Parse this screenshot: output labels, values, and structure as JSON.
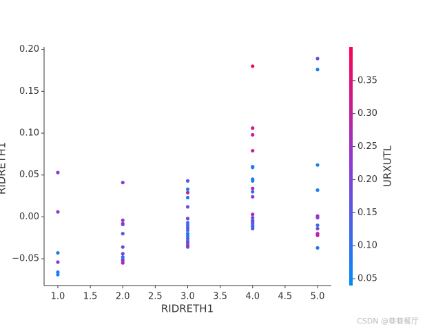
{
  "chart_data": {
    "type": "scatter",
    "xlabel": "RIDRETH1",
    "ylabel": "RIDRETH1",
    "colorbar_label": "URXUTL",
    "x": [
      1,
      1,
      1,
      1,
      1,
      1,
      2,
      2,
      2,
      2,
      2,
      2,
      2,
      2,
      2,
      2,
      2,
      3,
      3,
      3,
      3,
      3,
      3,
      3,
      3,
      3,
      3,
      3,
      3,
      3,
      3,
      3,
      3,
      3,
      4,
      4,
      4,
      4,
      4,
      4,
      4,
      4,
      4,
      4,
      4,
      4,
      4,
      4,
      4,
      4,
      4,
      4,
      4,
      5,
      5,
      5,
      5,
      5,
      5,
      5,
      5,
      5,
      5,
      5
    ],
    "y": [
      0.053,
      0.006,
      -0.043,
      -0.054,
      -0.066,
      -0.069,
      0.041,
      -0.004,
      -0.008,
      -0.009,
      -0.02,
      -0.036,
      -0.044,
      -0.048,
      -0.051,
      -0.052,
      -0.055,
      0.043,
      0.033,
      0.029,
      0.023,
      0.012,
      -0.002,
      -0.007,
      -0.01,
      -0.013,
      -0.016,
      -0.02,
      -0.023,
      -0.026,
      -0.029,
      -0.031,
      -0.034,
      -0.036,
      0.18,
      0.106,
      0.098,
      0.079,
      0.06,
      0.059,
      0.045,
      0.043,
      0.034,
      0.03,
      0.024,
      0.003,
      -0.001,
      -0.004,
      -0.006,
      -0.008,
      -0.01,
      -0.012,
      -0.014,
      0.189,
      0.176,
      0.062,
      0.032,
      0.001,
      -0.001,
      -0.01,
      -0.014,
      -0.02,
      -0.022,
      -0.037
    ],
    "color_values": [
      0.22,
      0.22,
      0.08,
      0.2,
      0.07,
      0.07,
      0.22,
      0.22,
      0.27,
      0.2,
      0.15,
      0.18,
      0.2,
      0.1,
      0.08,
      0.25,
      0.27,
      0.17,
      0.07,
      0.28,
      0.08,
      0.17,
      0.18,
      0.1,
      0.09,
      0.2,
      0.1,
      0.1,
      0.09,
      0.15,
      0.1,
      0.2,
      0.27,
      0.2,
      0.37,
      0.32,
      0.3,
      0.3,
      0.08,
      0.08,
      0.08,
      0.08,
      0.27,
      0.1,
      0.22,
      0.28,
      0.2,
      0.1,
      0.25,
      0.15,
      0.1,
      0.15,
      0.15,
      0.17,
      0.07,
      0.07,
      0.07,
      0.27,
      0.22,
      0.1,
      0.2,
      0.28,
      0.3,
      0.08
    ],
    "xlim": [
      0.788,
      5.212
    ],
    "ylim": [
      -0.082,
      0.203
    ],
    "xticks": [
      {
        "value": 1,
        "label": "1.0"
      },
      1.5,
      {
        "value": 2,
        "label": "2.0"
      },
      2.5,
      {
        "value": 3,
        "label": "3.0"
      },
      3.5,
      {
        "value": 4,
        "label": "4.0"
      },
      4.5,
      {
        "value": 5,
        "label": "5.0"
      }
    ],
    "yticks": [
      {
        "value": -0.05,
        "label": "−0.05"
      },
      {
        "value": 0,
        "label": "0.00"
      },
      0.05,
      {
        "value": 0.1,
        "label": "0.10"
      },
      0.15,
      {
        "value": 0.2,
        "label": "0.20"
      }
    ],
    "clim": [
      0.0396,
      0.401
    ],
    "cticks": [
      0.05,
      {
        "value": 0.1,
        "label": "0.10"
      },
      0.15,
      {
        "value": 0.2,
        "label": "0.20"
      },
      0.25,
      {
        "value": 0.3,
        "label": "0.30"
      },
      0.35
    ],
    "colormap": [
      "#008bfb",
      "#8a3bd6",
      "#ff0052"
    ]
  },
  "watermark": "CSDN @巷巷餐厅"
}
